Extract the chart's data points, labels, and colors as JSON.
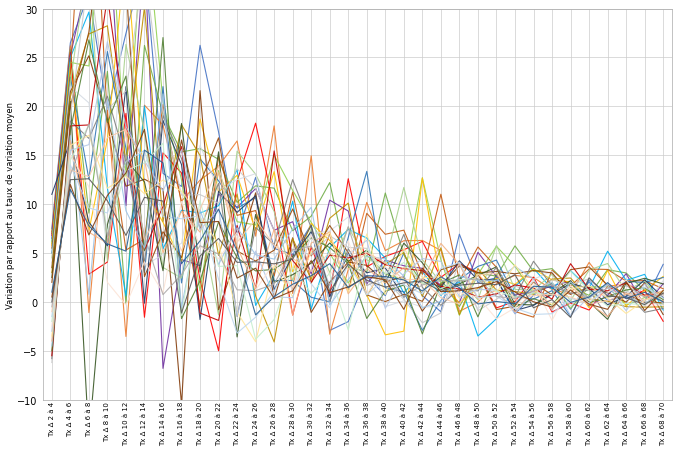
{
  "xlabel": "",
  "ylabel": "Variation par rapport au taux de variation moyen",
  "ylim": [
    -10,
    30
  ],
  "yticks": [
    -10,
    -5,
    0,
    5,
    10,
    15,
    20,
    25,
    30
  ],
  "xtick_labels": [
    "Tx Δ 2 à 4",
    "Tx Δ 4 à 6",
    "Tx Δ 6 à 8",
    "Tx Δ 8 à 10",
    "Tx Δ 10 à 12",
    "Tx Δ 12 à 14",
    "Tx Δ 14 à 16",
    "Tx Δ 16 à 18",
    "Tx Δ 18 à 20",
    "Tx Δ 20 à 22",
    "Tx Δ 22 à 24",
    "Tx Δ 24 à 26",
    "Tx Δ 26 à 28",
    "Tx Δ 28 à 30",
    "Tx Δ 30 à 32",
    "Tx Δ 32 à 34",
    "Tx Δ 34 à 36",
    "Tx Δ 36 à 38",
    "Tx Δ 38 à 40",
    "Tx Δ 40 à 42",
    "Tx Δ 42 à 44",
    "Tx Δ 44 à 46",
    "Tx Δ 46 à 48",
    "Tx Δ 48 à 50",
    "Tx Δ 50 à 52",
    "Tx Δ 52 à 54",
    "Tx Δ 54 à 56",
    "Tx Δ 56 à 58",
    "Tx Δ 58 à 60",
    "Tx Δ 60 à 62",
    "Tx Δ 62 à 64",
    "Tx Δ 64 à 66",
    "Tx Δ 66 à 68",
    "Tx Δ 68 à 70"
  ],
  "background_color": "#ffffff",
  "grid_color": "#cccccc",
  "line_colors": [
    "#4472c4",
    "#ed7d31",
    "#70ad47",
    "#ff0000",
    "#7030a0",
    "#00b0f0",
    "#92d050",
    "#ffc000",
    "#c55a11",
    "#2f75b6",
    "#a9d18e",
    "#d6dce4",
    "#833c0b",
    "#bf8f00",
    "#375623",
    "#984807",
    "#1f3864",
    "#c9c9c9",
    "#808080",
    "#c00000",
    "#538135",
    "#9dc3e6",
    "#f4b183",
    "#ffe699",
    "#b4c7e7",
    "#fce4d6",
    "#c6efce",
    "#bdd7ee",
    "#f8cbad",
    "#aeaaaa",
    "#595959",
    "#843c0c",
    "#255e91",
    "#375623"
  ],
  "n_lines": 33,
  "seed": 42
}
